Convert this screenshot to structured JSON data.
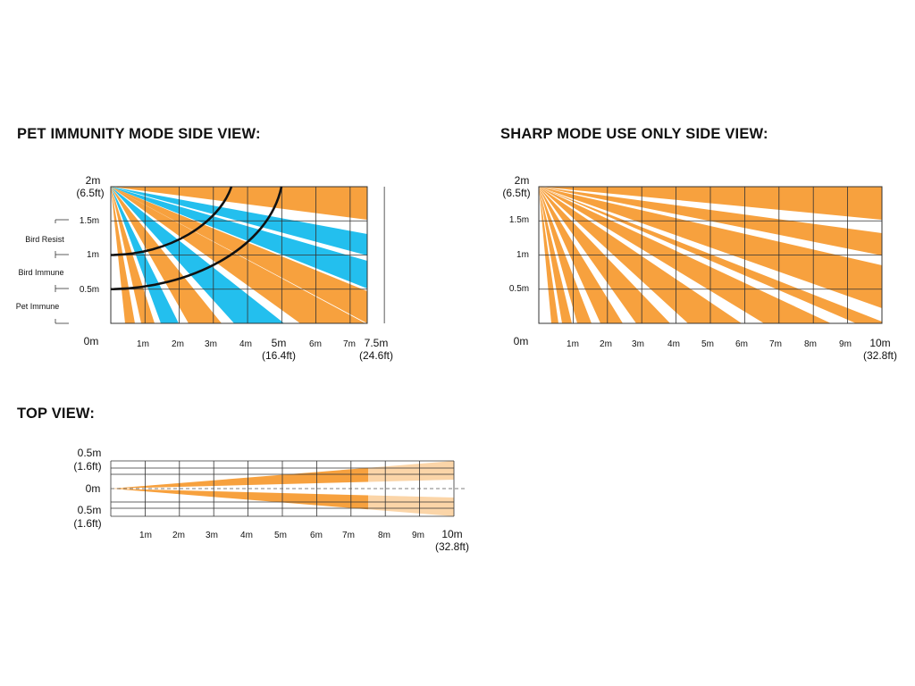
{
  "titles": {
    "pet_side": "PET IMMUNITY MODE SIDE VIEW:",
    "sharp_side": "SHARP MODE USE ONLY SIDE VIEW:",
    "top": "TOP VIEW:"
  },
  "pet_side": {
    "y_labels": [
      {
        "text": "2m",
        "sub": "(6.5ft)",
        "value": 2
      },
      {
        "text": "1.5m",
        "value": 1.5
      },
      {
        "text": "1m",
        "value": 1
      },
      {
        "text": "0.5m",
        "value": 0.5
      },
      {
        "text": "0m",
        "value": 0
      }
    ],
    "x_labels": [
      {
        "text": "1m",
        "value": 1
      },
      {
        "text": "2m",
        "value": 2
      },
      {
        "text": "3m",
        "value": 3
      },
      {
        "text": "4m",
        "value": 4
      },
      {
        "text": "5m",
        "sub": "(16.4ft)",
        "value": 5
      },
      {
        "text": "6m",
        "value": 6
      },
      {
        "text": "7m",
        "value": 7
      },
      {
        "text": "7.5m",
        "sub": "(24.6ft)",
        "value": 7.5
      }
    ],
    "zone_labels": [
      "Bird Resist",
      "Bird Immune",
      "Pet Immune"
    ],
    "max_range_m": 7.5,
    "colors": {
      "orange": "#f7a13e",
      "blue": "#23bfee",
      "grid": "#333333",
      "curve": "#111111"
    }
  },
  "sharp_side": {
    "y_labels": [
      {
        "text": "2m",
        "sub": "(6.5ft)",
        "value": 2
      },
      {
        "text": "1.5m",
        "value": 1.5
      },
      {
        "text": "1m",
        "value": 1
      },
      {
        "text": "0.5m",
        "value": 0.5
      },
      {
        "text": "0m",
        "value": 0
      }
    ],
    "x_labels": [
      {
        "text": "1m",
        "value": 1
      },
      {
        "text": "2m",
        "value": 2
      },
      {
        "text": "3m",
        "value": 3
      },
      {
        "text": "4m",
        "value": 4
      },
      {
        "text": "5m",
        "value": 5
      },
      {
        "text": "6m",
        "value": 6
      },
      {
        "text": "7m",
        "value": 7
      },
      {
        "text": "8m",
        "value": 8
      },
      {
        "text": "9m",
        "value": 9
      },
      {
        "text": "10m",
        "sub": "(32.8ft)",
        "value": 10
      }
    ],
    "max_range_m": 10,
    "colors": {
      "orange": "#f7a13e",
      "grid": "#333333"
    }
  },
  "top_view": {
    "y_labels": [
      {
        "text": "0.5m",
        "sub": "(1.6ft)",
        "value": 0.5
      },
      {
        "text": "0m",
        "value": 0
      },
      {
        "text": "0.5m",
        "sub": "(1.6ft)",
        "value": -0.5
      }
    ],
    "x_labels": [
      {
        "text": "1m",
        "value": 1
      },
      {
        "text": "2m",
        "value": 2
      },
      {
        "text": "3m",
        "value": 3
      },
      {
        "text": "4m",
        "value": 4
      },
      {
        "text": "5m",
        "value": 5
      },
      {
        "text": "6m",
        "value": 6
      },
      {
        "text": "7m",
        "value": 7
      },
      {
        "text": "8m",
        "value": 8
      },
      {
        "text": "9m",
        "value": 9
      },
      {
        "text": "10m",
        "sub": "(32.8ft)",
        "value": 10
      }
    ],
    "pet_mode_range_m": 7.5,
    "sharp_mode_range_m": 10,
    "colors": {
      "orange": "#f7a13e",
      "light_orange": "#fbd5a8",
      "grid": "#333333"
    }
  }
}
